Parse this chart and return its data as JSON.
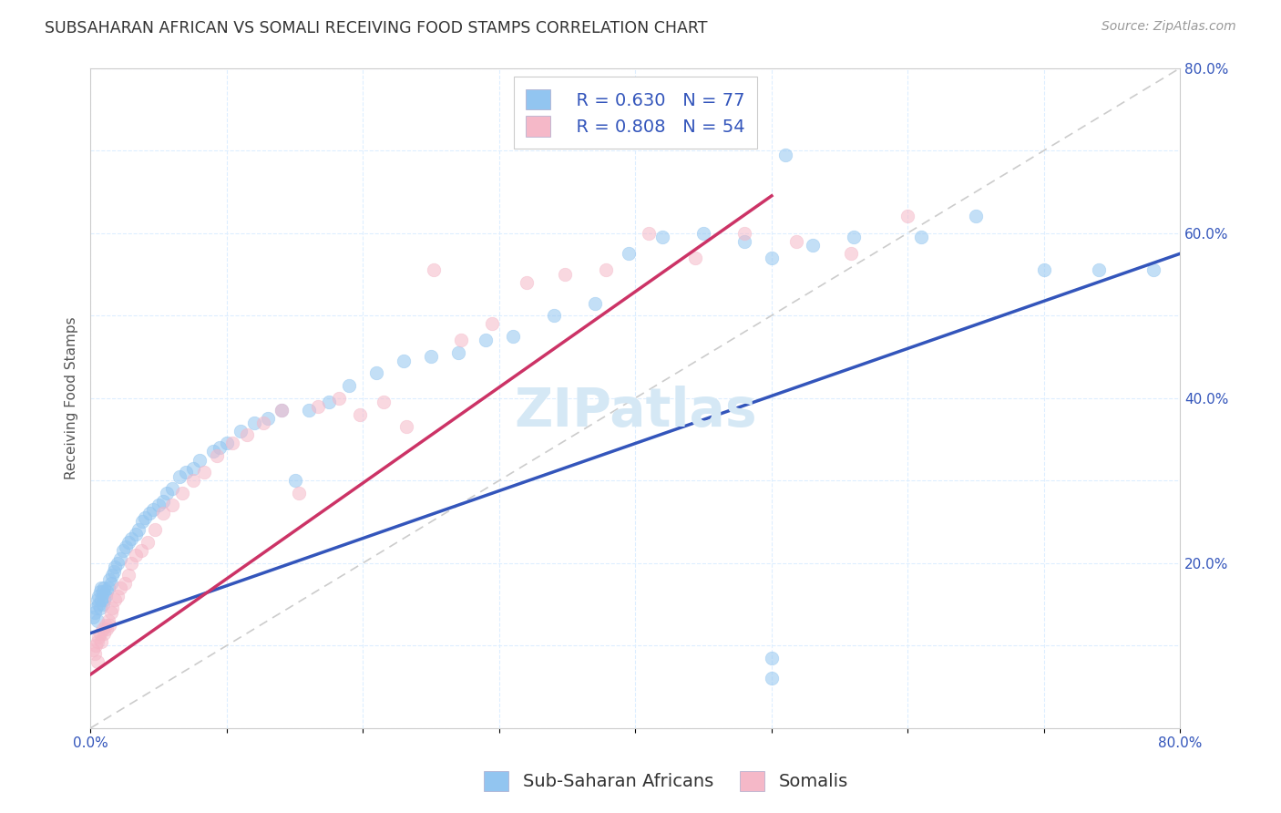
{
  "title": "SUBSAHARAN AFRICAN VS SOMALI RECEIVING FOOD STAMPS CORRELATION CHART",
  "source": "Source: ZipAtlas.com",
  "ylabel": "Receiving Food Stamps",
  "xlim": [
    0,
    0.8
  ],
  "ylim": [
    0,
    0.8
  ],
  "xtick_positions": [
    0.0,
    0.1,
    0.2,
    0.3,
    0.4,
    0.5,
    0.6,
    0.7,
    0.8
  ],
  "xtick_labels": [
    "0.0%",
    "",
    "",
    "",
    "",
    "",
    "",
    "",
    "80.0%"
  ],
  "ytick_positions": [
    0.0,
    0.1,
    0.2,
    0.3,
    0.4,
    0.5,
    0.6,
    0.7,
    0.8
  ],
  "ytick_labels": [
    "",
    "",
    "20.0%",
    "",
    "40.0%",
    "",
    "60.0%",
    "",
    "80.0%"
  ],
  "blue_color": "#92C5F0",
  "pink_color": "#F5B8C8",
  "blue_line_color": "#3355BB",
  "pink_line_color": "#CC3366",
  "diagonal_color": "#CCCCCC",
  "legend_R_blue": "R = 0.630",
  "legend_N_blue": "N = 77",
  "legend_R_pink": "R = 0.808",
  "legend_N_pink": "N = 54",
  "legend_label_blue": "Sub-Saharan Africans",
  "legend_label_pink": "Somalis",
  "watermark": "ZIPatlas",
  "blue_line_x0": 0.0,
  "blue_line_y0": 0.115,
  "blue_line_x1": 0.8,
  "blue_line_y1": 0.575,
  "pink_line_x0": 0.0,
  "pink_line_y0": 0.065,
  "pink_line_x1": 0.5,
  "pink_line_y1": 0.645,
  "blue_scatter_x": [
    0.002,
    0.003,
    0.004,
    0.005,
    0.005,
    0.006,
    0.006,
    0.007,
    0.007,
    0.008,
    0.008,
    0.009,
    0.009,
    0.01,
    0.01,
    0.011,
    0.012,
    0.013,
    0.014,
    0.015,
    0.016,
    0.017,
    0.018,
    0.02,
    0.022,
    0.024,
    0.026,
    0.028,
    0.03,
    0.033,
    0.035,
    0.038,
    0.04,
    0.043,
    0.046,
    0.05,
    0.053,
    0.056,
    0.06,
    0.065,
    0.07,
    0.075,
    0.08,
    0.09,
    0.095,
    0.1,
    0.11,
    0.12,
    0.13,
    0.14,
    0.15,
    0.16,
    0.175,
    0.19,
    0.21,
    0.23,
    0.25,
    0.27,
    0.29,
    0.31,
    0.34,
    0.37,
    0.395,
    0.42,
    0.45,
    0.48,
    0.5,
    0.53,
    0.56,
    0.61,
    0.65,
    0.7,
    0.74,
    0.5,
    0.5,
    0.51,
    0.78
  ],
  "blue_scatter_y": [
    0.135,
    0.14,
    0.145,
    0.13,
    0.155,
    0.15,
    0.16,
    0.145,
    0.165,
    0.155,
    0.17,
    0.15,
    0.165,
    0.155,
    0.17,
    0.16,
    0.165,
    0.17,
    0.18,
    0.175,
    0.185,
    0.19,
    0.195,
    0.2,
    0.205,
    0.215,
    0.22,
    0.225,
    0.23,
    0.235,
    0.24,
    0.25,
    0.255,
    0.26,
    0.265,
    0.27,
    0.275,
    0.285,
    0.29,
    0.305,
    0.31,
    0.315,
    0.325,
    0.335,
    0.34,
    0.345,
    0.36,
    0.37,
    0.375,
    0.385,
    0.3,
    0.385,
    0.395,
    0.415,
    0.43,
    0.445,
    0.45,
    0.455,
    0.47,
    0.475,
    0.5,
    0.515,
    0.575,
    0.595,
    0.6,
    0.59,
    0.57,
    0.585,
    0.595,
    0.595,
    0.62,
    0.555,
    0.555,
    0.085,
    0.06,
    0.695,
    0.555
  ],
  "pink_scatter_x": [
    0.002,
    0.003,
    0.004,
    0.005,
    0.005,
    0.006,
    0.007,
    0.008,
    0.009,
    0.01,
    0.011,
    0.012,
    0.013,
    0.014,
    0.015,
    0.016,
    0.018,
    0.02,
    0.022,
    0.025,
    0.028,
    0.03,
    0.033,
    0.037,
    0.042,
    0.047,
    0.053,
    0.06,
    0.067,
    0.075,
    0.083,
    0.093,
    0.104,
    0.115,
    0.127,
    0.14,
    0.153,
    0.167,
    0.182,
    0.198,
    0.215,
    0.232,
    0.252,
    0.272,
    0.295,
    0.32,
    0.348,
    0.378,
    0.41,
    0.444,
    0.48,
    0.518,
    0.558,
    0.6
  ],
  "pink_scatter_y": [
    0.095,
    0.09,
    0.1,
    0.08,
    0.105,
    0.11,
    0.115,
    0.105,
    0.12,
    0.115,
    0.125,
    0.12,
    0.13,
    0.125,
    0.14,
    0.145,
    0.155,
    0.16,
    0.17,
    0.175,
    0.185,
    0.2,
    0.21,
    0.215,
    0.225,
    0.24,
    0.26,
    0.27,
    0.285,
    0.3,
    0.31,
    0.33,
    0.345,
    0.355,
    0.37,
    0.385,
    0.285,
    0.39,
    0.4,
    0.38,
    0.395,
    0.365,
    0.555,
    0.47,
    0.49,
    0.54,
    0.55,
    0.555,
    0.6,
    0.57,
    0.6,
    0.59,
    0.575,
    0.62
  ],
  "title_fontsize": 12.5,
  "source_fontsize": 10,
  "axis_label_fontsize": 11,
  "tick_fontsize": 11,
  "legend_fontsize": 14,
  "watermark_fontsize": 42,
  "watermark_color": "#D5E8F5",
  "background_color": "#FFFFFF",
  "grid_color": "#DDEEFF",
  "scatter_size": 110,
  "scatter_alpha": 0.55,
  "scatter_lw": 0.5
}
